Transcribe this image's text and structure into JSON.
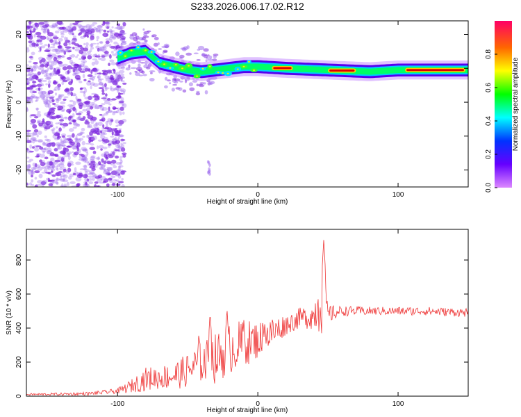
{
  "title": "S233.2026.006.17.02.R12",
  "colors": {
    "snr_line": "#ee3333",
    "spec_low": "#9a66ee",
    "spec_dot": "#7a22dd",
    "spec_core": "#dd0000"
  },
  "chart_data": [
    {
      "type": "heatmap",
      "name": "spectrogram",
      "xlabel": "Height of straight line (km)",
      "ylabel": "Frequency (Hz)",
      "xlim": [
        -165,
        150
      ],
      "ylim": [
        -25,
        24
      ],
      "xticks": [
        -100,
        0,
        100
      ],
      "yticks": [
        -20,
        -10,
        0,
        10,
        20
      ],
      "colorbar": {
        "label": "Normalized spectral amplitude",
        "range": [
          0,
          1
        ],
        "ticks": [
          "0.0",
          "0.2",
          "0.4",
          "0.6",
          "0.8"
        ],
        "tick_values": [
          0,
          0.2,
          0.4,
          0.6,
          0.8
        ],
        "scale": [
          "#dd88ff",
          "#6600ff",
          "#0033ff",
          "#00ffff",
          "#00ff00",
          "#ffff00",
          "#ff6600",
          "#ff0066"
        ]
      },
      "ridge": {
        "points": [
          [
            -100,
            13
          ],
          [
            -90,
            14.5
          ],
          [
            -80,
            15
          ],
          [
            -70,
            11.5
          ],
          [
            -60,
            10.5
          ],
          [
            -50,
            9.5
          ],
          [
            -40,
            9
          ],
          [
            -30,
            9.5
          ],
          [
            -20,
            10
          ],
          [
            -10,
            10.5
          ],
          [
            0,
            10.5
          ],
          [
            20,
            10
          ],
          [
            50,
            9.5
          ],
          [
            80,
            9
          ],
          [
            100,
            9.5
          ],
          [
            150,
            9.5
          ]
        ],
        "hot_segments": [
          [
            10,
            25
          ],
          [
            50,
            70
          ],
          [
            105,
            148
          ]
        ]
      }
    },
    {
      "type": "line",
      "name": "snr",
      "xlabel": "Height of straight line (km)",
      "ylabel": "SNR (10 * v/v)",
      "xlim": [
        -165,
        150
      ],
      "ylim": [
        0,
        980
      ],
      "xticks": [
        -100,
        0,
        100
      ],
      "yticks": [
        0,
        200,
        400,
        600,
        800
      ],
      "series": [
        {
          "name": "SNR",
          "x": [
            -165,
            -140,
            -120,
            -100,
            -90,
            -80,
            -70,
            -60,
            -50,
            -40,
            -30,
            -20,
            -10,
            0,
            10,
            20,
            30,
            40,
            45,
            50,
            55,
            60,
            80,
            100,
            120,
            150
          ],
          "y": [
            10,
            12,
            15,
            30,
            60,
            100,
            110,
            120,
            150,
            200,
            220,
            280,
            310,
            330,
            370,
            420,
            460,
            470,
            600,
            480,
            490,
            500,
            500,
            500,
            500,
            490
          ],
          "noise": [
            6,
            8,
            10,
            15,
            40,
            70,
            70,
            80,
            100,
            120,
            150,
            150,
            140,
            110,
            100,
            60,
            60,
            80,
            250,
            60,
            40,
            30,
            25,
            25,
            25,
            25
          ],
          "peaks": [
            [
              -42,
              380
            ],
            [
              -34,
              500
            ],
            [
              -22,
              520
            ],
            [
              -10,
              450
            ],
            [
              5,
              440
            ],
            [
              47,
              920
            ]
          ]
        }
      ]
    }
  ]
}
